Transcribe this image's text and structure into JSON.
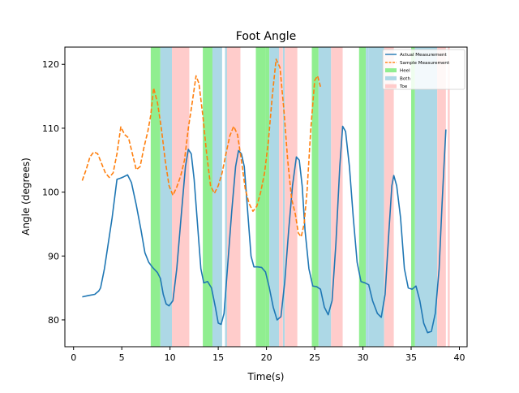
{
  "chart_data": {
    "type": "line",
    "title": "Foot Angle",
    "xlabel": "Time(s)",
    "ylabel": "Angle (degrees)",
    "xlim": [
      -0.9,
      40.8
    ],
    "ylim": [
      75.8,
      122.7
    ],
    "xticks": [
      0,
      5,
      10,
      15,
      20,
      25,
      30,
      35,
      40
    ],
    "yticks": [
      80,
      90,
      100,
      110,
      120
    ],
    "grid": false,
    "legend_position": "top-right",
    "series": [
      {
        "name": "Actual Measurement",
        "color": "#1f77b4",
        "style": "solid",
        "points": [
          [
            0.9,
            83.6
          ],
          [
            1.5,
            83.8
          ],
          [
            2.2,
            84
          ],
          [
            2.6,
            84.5
          ],
          [
            2.8,
            85
          ],
          [
            3.2,
            88
          ],
          [
            3.6,
            92
          ],
          [
            4.0,
            96
          ],
          [
            4.5,
            102
          ],
          [
            4.9,
            102.2
          ],
          [
            5.2,
            102.4
          ],
          [
            5.6,
            102.7
          ],
          [
            6.0,
            101.5
          ],
          [
            6.5,
            98
          ],
          [
            7.0,
            94
          ],
          [
            7.4,
            90.5
          ],
          [
            7.8,
            89
          ],
          [
            8.2,
            88.2
          ],
          [
            8.7,
            87.4
          ],
          [
            9.0,
            86.5
          ],
          [
            9.3,
            84
          ],
          [
            9.6,
            82.5
          ],
          [
            9.9,
            82.2
          ],
          [
            10.3,
            83
          ],
          [
            10.7,
            88
          ],
          [
            11.2,
            97
          ],
          [
            11.6,
            104
          ],
          [
            11.9,
            106.7
          ],
          [
            12.2,
            106
          ],
          [
            12.5,
            102
          ],
          [
            12.9,
            94
          ],
          [
            13.2,
            88
          ],
          [
            13.5,
            85.8
          ],
          [
            13.9,
            86
          ],
          [
            14.3,
            85
          ],
          [
            14.7,
            82
          ],
          [
            15.0,
            79.5
          ],
          [
            15.3,
            79.3
          ],
          [
            15.6,
            81
          ],
          [
            16.0,
            89
          ],
          [
            16.4,
            97
          ],
          [
            16.8,
            104
          ],
          [
            17.1,
            106.5
          ],
          [
            17.4,
            106
          ],
          [
            17.7,
            104
          ],
          [
            18.0,
            98
          ],
          [
            18.4,
            90
          ],
          [
            18.7,
            88.3
          ],
          [
            19.1,
            88.3
          ],
          [
            19.5,
            88.2
          ],
          [
            19.9,
            87.5
          ],
          [
            20.3,
            85
          ],
          [
            20.7,
            82
          ],
          [
            21.1,
            80
          ],
          [
            21.5,
            80.5
          ],
          [
            21.9,
            86
          ],
          [
            22.3,
            94
          ],
          [
            22.7,
            101
          ],
          [
            23.1,
            105.5
          ],
          [
            23.4,
            105
          ],
          [
            23.7,
            101
          ],
          [
            24.0,
            94
          ],
          [
            24.4,
            88
          ],
          [
            24.8,
            85.3
          ],
          [
            25.2,
            85.2
          ],
          [
            25.6,
            84.8
          ],
          [
            26.0,
            82
          ],
          [
            26.4,
            80.8
          ],
          [
            26.8,
            83
          ],
          [
            27.2,
            92
          ],
          [
            27.6,
            104
          ],
          [
            27.9,
            110.3
          ],
          [
            28.2,
            109.5
          ],
          [
            28.6,
            104
          ],
          [
            29.0,
            96
          ],
          [
            29.4,
            89
          ],
          [
            29.8,
            86
          ],
          [
            30.2,
            85.8
          ],
          [
            30.6,
            85.5
          ],
          [
            31.0,
            83
          ],
          [
            31.5,
            81
          ],
          [
            31.9,
            80.4
          ],
          [
            32.3,
            84
          ],
          [
            32.7,
            94
          ],
          [
            33.0,
            101
          ],
          [
            33.2,
            102.6
          ],
          [
            33.5,
            101
          ],
          [
            33.9,
            96
          ],
          [
            34.3,
            88
          ],
          [
            34.7,
            85
          ],
          [
            35.1,
            84.8
          ],
          [
            35.5,
            85.3
          ],
          [
            35.9,
            83
          ],
          [
            36.3,
            79.5
          ],
          [
            36.7,
            78
          ],
          [
            37.1,
            78.2
          ],
          [
            37.5,
            81
          ],
          [
            37.9,
            88
          ],
          [
            38.2,
            98
          ],
          [
            38.4,
            104
          ],
          [
            38.6,
            109.8
          ]
        ]
      },
      {
        "name": "Sample Measurement",
        "color": "#ff7f0e",
        "style": "dashed",
        "points": [
          [
            0.9,
            101.8
          ],
          [
            1.3,
            103.5
          ],
          [
            1.7,
            105.5
          ],
          [
            2.1,
            106.3
          ],
          [
            2.5,
            106
          ],
          [
            2.9,
            104.5
          ],
          [
            3.3,
            103
          ],
          [
            3.7,
            102.3
          ],
          [
            4.1,
            103
          ],
          [
            4.5,
            106
          ],
          [
            4.9,
            110.2
          ],
          [
            5.3,
            109
          ],
          [
            5.7,
            108.5
          ],
          [
            6.1,
            106
          ],
          [
            6.5,
            103.5
          ],
          [
            6.9,
            104
          ],
          [
            7.3,
            107
          ],
          [
            7.7,
            109.5
          ],
          [
            8.0,
            112
          ],
          [
            8.3,
            116.3
          ],
          [
            8.7,
            114
          ],
          [
            9.1,
            110
          ],
          [
            9.5,
            105
          ],
          [
            9.9,
            101
          ],
          [
            10.3,
            99.5
          ],
          [
            10.7,
            100.8
          ],
          [
            11.1,
            102.5
          ],
          [
            11.5,
            105
          ],
          [
            11.9,
            110
          ],
          [
            12.3,
            114
          ],
          [
            12.7,
            118.2
          ],
          [
            13.0,
            117
          ],
          [
            13.4,
            112
          ],
          [
            13.8,
            106
          ],
          [
            14.2,
            101
          ],
          [
            14.6,
            99.8
          ],
          [
            15.0,
            101
          ],
          [
            15.4,
            103
          ],
          [
            15.8,
            106
          ],
          [
            16.2,
            108.8
          ],
          [
            16.6,
            110.3
          ],
          [
            17.0,
            109
          ],
          [
            17.4,
            105
          ],
          [
            17.8,
            100.5
          ],
          [
            18.2,
            98.2
          ],
          [
            18.6,
            97
          ],
          [
            19.0,
            97.8
          ],
          [
            19.4,
            100
          ],
          [
            19.8,
            103
          ],
          [
            20.2,
            108
          ],
          [
            20.6,
            115
          ],
          [
            21.0,
            120.8
          ],
          [
            21.4,
            119.5
          ],
          [
            21.8,
            113
          ],
          [
            22.2,
            105
          ],
          [
            22.6,
            99
          ],
          [
            23.0,
            96.5
          ],
          [
            23.3,
            93.6
          ],
          [
            23.6,
            93
          ],
          [
            23.9,
            95
          ],
          [
            24.2,
            100
          ],
          [
            24.6,
            110
          ],
          [
            25.0,
            117.5
          ],
          [
            25.3,
            118.2
          ],
          [
            25.6,
            116.5
          ]
        ]
      }
    ],
    "phase_bands": [
      {
        "name": "Heel",
        "color": "#90ee90",
        "ranges": [
          [
            8.0,
            9.0
          ],
          [
            13.4,
            14.4
          ],
          [
            18.9,
            19.9
          ],
          [
            19.9,
            20.3
          ],
          [
            24.7,
            25.4
          ],
          [
            29.6,
            30.3
          ],
          [
            35.0,
            35.4
          ]
        ]
      },
      {
        "name": "Both",
        "color": "#add8e6",
        "ranges": [
          [
            9.0,
            10.2
          ],
          [
            14.4,
            15.4
          ],
          [
            15.7,
            16.0
          ],
          [
            20.3,
            21.3
          ],
          [
            21.7,
            21.9
          ],
          [
            25.4,
            26.7
          ],
          [
            30.3,
            30.6
          ],
          [
            30.6,
            32.2
          ],
          [
            35.4,
            37.7
          ]
        ]
      },
      {
        "name": "Toe",
        "color": "#ffcccb",
        "ranges": [
          [
            10.2,
            12.0
          ],
          [
            15.9,
            17.3
          ],
          [
            21.3,
            21.7
          ],
          [
            21.9,
            23.2
          ],
          [
            26.7,
            27.9
          ],
          [
            32.2,
            33.2
          ],
          [
            37.7,
            38.6
          ],
          [
            38.8,
            39.0
          ]
        ]
      }
    ]
  }
}
